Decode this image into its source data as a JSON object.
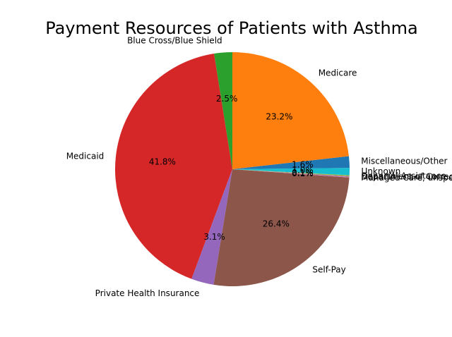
{
  "chart_data": {
    "type": "pie",
    "title": "Payment Resources of Patients with Asthma",
    "start_angle_deg": 90,
    "direction": "counterclockwise",
    "slices": [
      {
        "label": "Blue Cross/Blue Shield",
        "value": 2.5,
        "pct_text": "2.5%",
        "color": "#2ca02c"
      },
      {
        "label": "Medicaid",
        "value": 41.8,
        "pct_text": "41.8%",
        "color": "#d62728"
      },
      {
        "label": "Private Health Insurance",
        "value": 3.1,
        "pct_text": "3.1%",
        "color": "#9467bd"
      },
      {
        "label": "Self-Pay",
        "value": 26.4,
        "pct_text": "26.4%",
        "color": "#8c564b"
      },
      {
        "label": "Managed Care, unspecified",
        "value": 0.1,
        "pct_text": "0.1%",
        "color": "#e377c2"
      },
      {
        "label": "Department of Corrections",
        "value": 0.1,
        "pct_text": "0.1%",
        "color": "#7f7f7f"
      },
      {
        "label": "Financial Assistance",
        "value": 0.1,
        "pct_text": "0.1%",
        "color": "#bcbd22"
      },
      {
        "label": "Unknown",
        "value": 1.0,
        "pct_text": "1.0%",
        "color": "#17becf"
      },
      {
        "label": "Miscellaneous/Other",
        "value": 1.6,
        "pct_text": "1.6%",
        "color": "#1f77b4"
      },
      {
        "label": "Medicare",
        "value": 23.2,
        "pct_text": "23.2%",
        "color": "#ff7f0e"
      }
    ]
  }
}
